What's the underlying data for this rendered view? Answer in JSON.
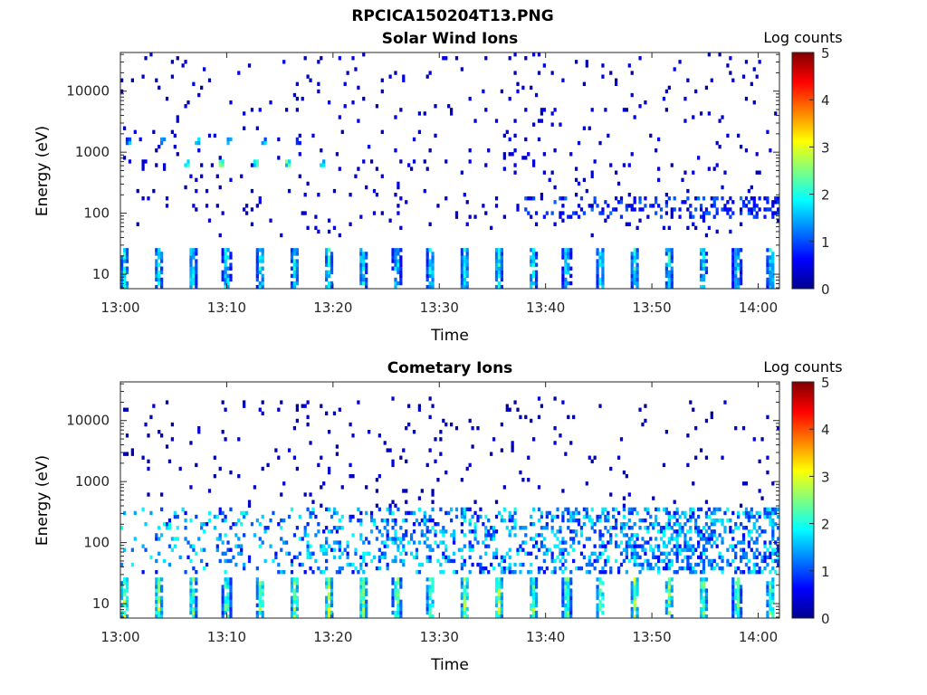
{
  "figure": {
    "filename_title": "RPCICA150204T13.PNG"
  },
  "colorbar": {
    "label": "Log counts",
    "ticks": [
      "0",
      "1",
      "2",
      "3",
      "4",
      "5"
    ],
    "range": [
      0,
      5
    ],
    "colormap": "jet"
  },
  "chart_data": [
    {
      "type": "heatmap",
      "title": "Solar Wind Ions",
      "xlabel": "Time",
      "ylabel": "Energy (eV)",
      "x_ticks": [
        "13:00",
        "13:10",
        "13:20",
        "13:30",
        "13:40",
        "13:50",
        "14:00"
      ],
      "x_range_minutes": [
        0,
        62
      ],
      "y_scale": "log",
      "y_ticks": [
        "10",
        "100",
        "1000",
        "10000"
      ],
      "y_range": [
        5.8,
        43000
      ],
      "clim": [
        0,
        5
      ],
      "features": [
        {
          "desc": "periodic low-energy bursts",
          "energy_range": [
            6,
            28
          ],
          "start_min": 0.0,
          "period_min": 3.2,
          "peak_log_counts": 2.4
        },
        {
          "desc": "recurring band",
          "energy_center": 1500,
          "start_min": 0.5,
          "end_min": 18,
          "peak_log_counts": 1.8
        },
        {
          "desc": "recurring band",
          "energy_center": 650,
          "start_min": 6,
          "end_min": 21,
          "peak_log_counts": 2.6
        },
        {
          "desc": "dense band",
          "energy_range": [
            80,
            200
          ],
          "start_min": 37,
          "end_min": 62,
          "peak_log_counts": 1.2
        },
        {
          "desc": "sparse scatter",
          "energy_range": [
            40,
            43000
          ],
          "start_min": 0,
          "end_min": 62,
          "peak_log_counts": 0.6
        }
      ]
    },
    {
      "type": "heatmap",
      "title": "Cometary Ions",
      "xlabel": "Time",
      "ylabel": "Energy (eV)",
      "x_ticks": [
        "13:00",
        "13:10",
        "13:20",
        "13:30",
        "13:40",
        "13:50",
        "14:00"
      ],
      "x_range_minutes": [
        0,
        62
      ],
      "y_scale": "log",
      "y_ticks": [
        "10",
        "100",
        "1000",
        "10000"
      ],
      "y_range": [
        5.8,
        43000
      ],
      "clim": [
        0,
        5
      ],
      "features": [
        {
          "desc": "periodic low-energy bursts",
          "energy_range": [
            6,
            28
          ],
          "start_min": 0.0,
          "period_min": 3.2,
          "peak_log_counts": 3.2
        },
        {
          "desc": "broad band",
          "energy_range": [
            30,
            400
          ],
          "start_min": 0,
          "end_min": 62,
          "peak_log_counts": 2.0
        },
        {
          "desc": "sparse high-energy scatter",
          "energy_range": [
            400,
            25000
          ],
          "start_min": 0,
          "end_min": 62,
          "peak_log_counts": 0.5
        }
      ]
    }
  ]
}
